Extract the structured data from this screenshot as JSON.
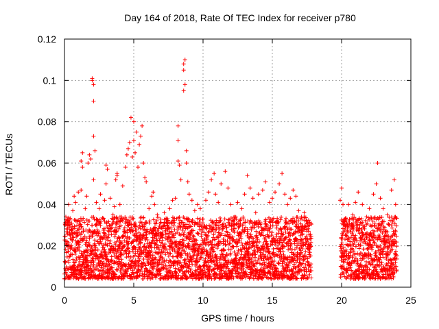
{
  "chart_data": {
    "type": "scatter",
    "title": "Day 164 of 2018, Rate Of TEC Index for receiver p780",
    "xlabel": "GPS time / hours",
    "ylabel": "ROTI / TECUs",
    "xlim": [
      0,
      25
    ],
    "ylim": [
      0,
      0.12
    ],
    "xticks": [
      0,
      5,
      10,
      15,
      20,
      25
    ],
    "yticks": [
      0,
      0.02,
      0.04,
      0.06,
      0.08,
      0.1,
      0.12
    ],
    "xtick_labels": [
      "0",
      "5",
      "10",
      "15",
      "20",
      "25"
    ],
    "ytick_labels": [
      "0",
      "0.02",
      "0.04",
      "0.06",
      "0.08",
      "0.1",
      "0.12"
    ],
    "grid": true,
    "marker": "+",
    "color": "#ff0000",
    "data_gap_hours": [
      17.8,
      19.9
    ],
    "series": [
      {
        "name": "ROTI",
        "points": [
          [
            0.1,
            0.034
          ],
          [
            0.2,
            0.022
          ],
          [
            0.3,
            0.03
          ],
          [
            0.3,
            0.04
          ],
          [
            0.4,
            0.015
          ],
          [
            0.5,
            0.028
          ],
          [
            0.6,
            0.037
          ],
          [
            0.7,
            0.044
          ],
          [
            0.8,
            0.041
          ],
          [
            0.9,
            0.03
          ],
          [
            1.0,
            0.046
          ],
          [
            1.1,
            0.031
          ],
          [
            1.2,
            0.047
          ],
          [
            1.2,
            0.061
          ],
          [
            1.3,
            0.065
          ],
          [
            1.3,
            0.058
          ],
          [
            1.5,
            0.038
          ],
          [
            1.6,
            0.044
          ],
          [
            1.7,
            0.06
          ],
          [
            1.8,
            0.064
          ],
          [
            1.9,
            0.062
          ],
          [
            2.0,
            0.1
          ],
          [
            2.0,
            0.101
          ],
          [
            2.1,
            0.098
          ],
          [
            2.1,
            0.09
          ],
          [
            2.1,
            0.073
          ],
          [
            2.2,
            0.066
          ],
          [
            2.1,
            0.052
          ],
          [
            2.3,
            0.041
          ],
          [
            2.5,
            0.038
          ],
          [
            2.6,
            0.045
          ],
          [
            2.8,
            0.033
          ],
          [
            2.9,
            0.042
          ],
          [
            3.0,
            0.05
          ],
          [
            3.0,
            0.059
          ],
          [
            3.1,
            0.057
          ],
          [
            3.3,
            0.043
          ],
          [
            3.5,
            0.035
          ],
          [
            3.6,
            0.039
          ],
          [
            3.7,
            0.052
          ],
          [
            3.8,
            0.055
          ],
          [
            3.8,
            0.054
          ],
          [
            4.0,
            0.04
          ],
          [
            4.2,
            0.049
          ],
          [
            4.4,
            0.058
          ],
          [
            4.5,
            0.064
          ],
          [
            4.6,
            0.067
          ],
          [
            4.7,
            0.07
          ],
          [
            4.8,
            0.082
          ],
          [
            4.9,
            0.063
          ],
          [
            5.0,
            0.071
          ],
          [
            5.0,
            0.08
          ],
          [
            5.1,
            0.065
          ],
          [
            5.2,
            0.075
          ],
          [
            5.3,
            0.058
          ],
          [
            5.4,
            0.069
          ],
          [
            5.5,
            0.073
          ],
          [
            5.6,
            0.078
          ],
          [
            5.7,
            0.06
          ],
          [
            5.8,
            0.053
          ],
          [
            5.9,
            0.051
          ],
          [
            6.1,
            0.038
          ],
          [
            6.3,
            0.044
          ],
          [
            6.4,
            0.046
          ],
          [
            6.5,
            0.04
          ],
          [
            6.7,
            0.035
          ],
          [
            6.9,
            0.031
          ],
          [
            7.2,
            0.036
          ],
          [
            7.4,
            0.03
          ],
          [
            7.6,
            0.038
          ],
          [
            7.8,
            0.042
          ],
          [
            8.0,
            0.043
          ],
          [
            8.2,
            0.061
          ],
          [
            8.2,
            0.071
          ],
          [
            8.2,
            0.078
          ],
          [
            8.3,
            0.059
          ],
          [
            8.4,
            0.052
          ],
          [
            8.6,
            0.095
          ],
          [
            8.6,
            0.105
          ],
          [
            8.6,
            0.108
          ],
          [
            8.7,
            0.11
          ],
          [
            8.7,
            0.098
          ],
          [
            8.8,
            0.066
          ],
          [
            8.8,
            0.06
          ],
          [
            8.9,
            0.051
          ],
          [
            9.0,
            0.045
          ],
          [
            9.2,
            0.042
          ],
          [
            9.4,
            0.037
          ],
          [
            9.6,
            0.04
          ],
          [
            9.8,
            0.038
          ],
          [
            10.0,
            0.033
          ],
          [
            10.2,
            0.042
          ],
          [
            10.4,
            0.046
          ],
          [
            10.6,
            0.052
          ],
          [
            10.8,
            0.055
          ],
          [
            10.9,
            0.045
          ],
          [
            11.1,
            0.041
          ],
          [
            11.3,
            0.05
          ],
          [
            11.6,
            0.056
          ],
          [
            11.8,
            0.048
          ],
          [
            12.0,
            0.04
          ],
          [
            12.3,
            0.034
          ],
          [
            12.5,
            0.041
          ],
          [
            12.8,
            0.038
          ],
          [
            13.0,
            0.045
          ],
          [
            13.2,
            0.054
          ],
          [
            13.4,
            0.048
          ],
          [
            13.6,
            0.043
          ],
          [
            13.8,
            0.036
          ],
          [
            14.0,
            0.045
          ],
          [
            14.3,
            0.047
          ],
          [
            14.5,
            0.051
          ],
          [
            14.8,
            0.041
          ],
          [
            15.0,
            0.043
          ],
          [
            15.2,
            0.046
          ],
          [
            15.5,
            0.05
          ],
          [
            15.7,
            0.055
          ],
          [
            15.9,
            0.045
          ],
          [
            16.1,
            0.04
          ],
          [
            16.3,
            0.043
          ],
          [
            16.5,
            0.047
          ],
          [
            16.7,
            0.044
          ],
          [
            16.9,
            0.037
          ],
          [
            17.1,
            0.034
          ],
          [
            17.3,
            0.036
          ],
          [
            17.5,
            0.032
          ],
          [
            17.7,
            0.03
          ],
          [
            19.9,
            0.042
          ],
          [
            20.0,
            0.048
          ],
          [
            20.1,
            0.04
          ],
          [
            20.3,
            0.033
          ],
          [
            20.5,
            0.04
          ],
          [
            20.8,
            0.035
          ],
          [
            21.0,
            0.041
          ],
          [
            21.2,
            0.046
          ],
          [
            21.5,
            0.04
          ],
          [
            21.8,
            0.034
          ],
          [
            22.0,
            0.038
          ],
          [
            22.3,
            0.045
          ],
          [
            22.5,
            0.05
          ],
          [
            22.6,
            0.06
          ],
          [
            22.8,
            0.043
          ],
          [
            23.0,
            0.038
          ],
          [
            23.3,
            0.035
          ],
          [
            23.6,
            0.047
          ],
          [
            23.8,
            0.052
          ],
          [
            23.9,
            0.04
          ]
        ],
        "band": {
          "x_start": 0.0,
          "x_end": 24.0,
          "lower": 0.004,
          "upper": 0.034,
          "gap": [
            17.8,
            19.9
          ]
        }
      }
    ]
  }
}
